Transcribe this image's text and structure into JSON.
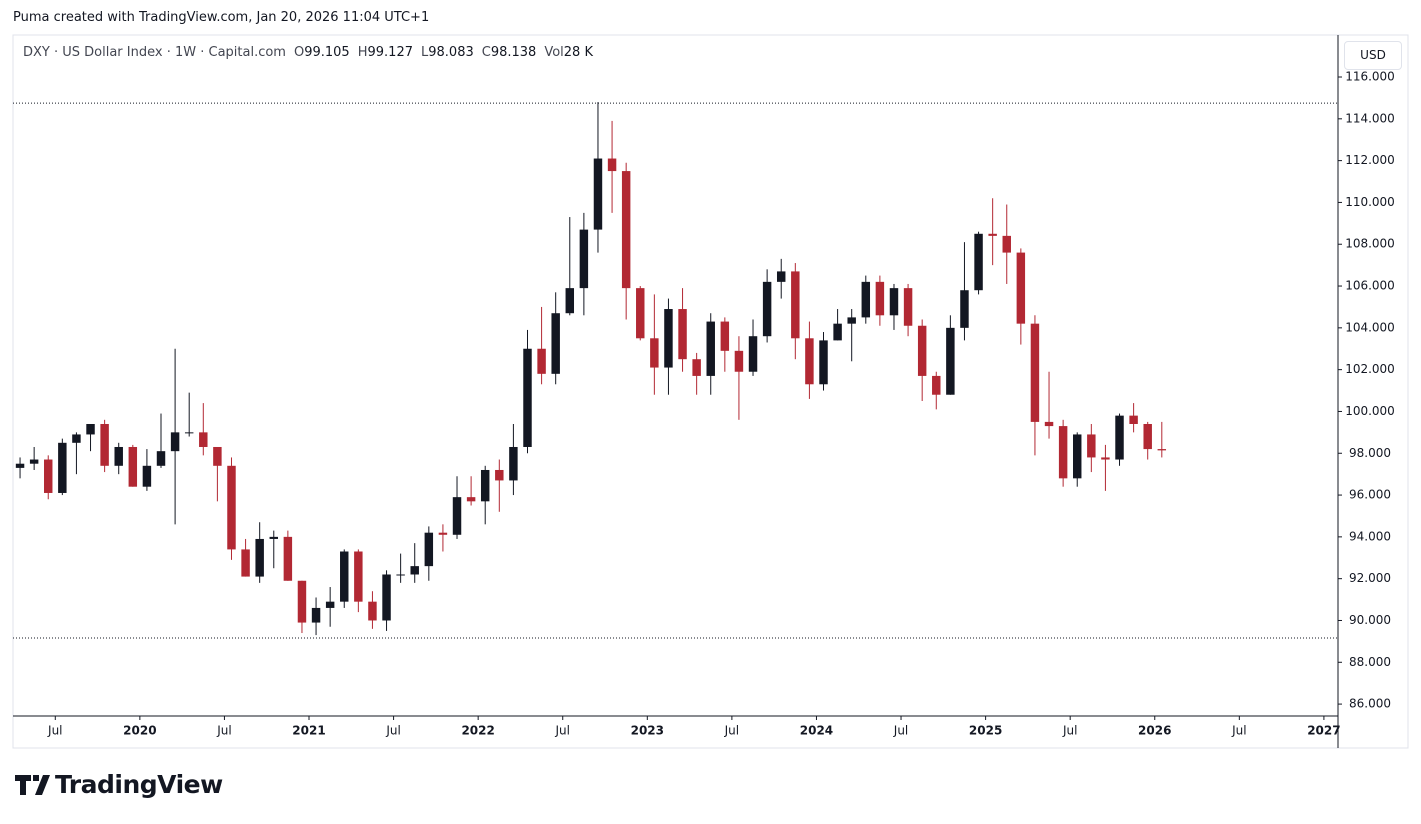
{
  "header": {
    "caption": "Puma created with TradingView.com, Jan 20, 2026 11:04 UTC+1",
    "symbol": "DXY · US Dollar Index · 1W · Capital.com",
    "ohlc": [
      {
        "label": "O",
        "value": 99.105
      },
      {
        "label": "H",
        "value": 99.127
      },
      {
        "label": "L",
        "value": 98.083
      },
      {
        "label": "C",
        "value": 98.138
      }
    ],
    "vol_label": "Vol",
    "vol": "28 K",
    "currency": "USD"
  },
  "logo": "TradingView",
  "chart_data": {
    "type": "candlestick",
    "up_color": "#131722",
    "down_color": "#b22833",
    "x": [
      "2019-04",
      "2019-05",
      "2019-06",
      "2019-07",
      "2019-08",
      "2019-09",
      "2019-10",
      "2019-11",
      "2019-12",
      "2020-01",
      "2020-02",
      "2020-03",
      "2020-04",
      "2020-05",
      "2020-06",
      "2020-07",
      "2020-08",
      "2020-09",
      "2020-10",
      "2020-11",
      "2020-12",
      "2021-01",
      "2021-02",
      "2021-03",
      "2021-04",
      "2021-05",
      "2021-06",
      "2021-07",
      "2021-08",
      "2021-09",
      "2021-10",
      "2021-11",
      "2021-12",
      "2022-01",
      "2022-02",
      "2022-03",
      "2022-04",
      "2022-05",
      "2022-06",
      "2022-07",
      "2022-08",
      "2022-09",
      "2022-10",
      "2022-11",
      "2022-12",
      "2023-01",
      "2023-02",
      "2023-03",
      "2023-04",
      "2023-05",
      "2023-06",
      "2023-07",
      "2023-08",
      "2023-09",
      "2023-10",
      "2023-11",
      "2023-12",
      "2024-01",
      "2024-02",
      "2024-03",
      "2024-04",
      "2024-05",
      "2024-06",
      "2024-07",
      "2024-08",
      "2024-09",
      "2024-10",
      "2024-11",
      "2024-12",
      "2025-01",
      "2025-02",
      "2025-03",
      "2025-04",
      "2025-05",
      "2025-06",
      "2025-07",
      "2025-08",
      "2025-09",
      "2025-10",
      "2025-11",
      "2025-12",
      "2026-01"
    ],
    "open": [
      97.3,
      97.5,
      97.7,
      96.1,
      98.5,
      98.9,
      99.4,
      97.4,
      98.3,
      96.4,
      97.4,
      98.1,
      99.0,
      99.0,
      98.3,
      97.4,
      93.4,
      92.1,
      93.9,
      94.0,
      91.9,
      89.9,
      90.6,
      90.9,
      93.3,
      90.9,
      90.0,
      92.2,
      92.2,
      92.6,
      94.2,
      94.1,
      95.9,
      95.7,
      97.2,
      96.7,
      98.3,
      103.0,
      101.8,
      104.7,
      105.9,
      108.7,
      112.1,
      111.5,
      105.9,
      103.5,
      102.1,
      104.9,
      102.5,
      101.7,
      104.3,
      102.9,
      101.9,
      103.6,
      106.2,
      106.7,
      103.5,
      101.3,
      103.4,
      104.2,
      104.5,
      106.2,
      104.6,
      105.9,
      104.1,
      101.7,
      100.8,
      104.0,
      105.8,
      108.5,
      108.4,
      107.6,
      104.2,
      99.5,
      99.3,
      96.8,
      98.9,
      97.8,
      97.7,
      99.8,
      99.4,
      98.2
    ],
    "high": [
      97.8,
      98.3,
      97.9,
      98.7,
      99.0,
      99.4,
      99.6,
      98.5,
      98.4,
      98.2,
      99.9,
      103.0,
      100.9,
      100.4,
      98.3,
      97.8,
      93.9,
      94.7,
      94.3,
      94.3,
      91.9,
      91.1,
      91.6,
      93.4,
      93.4,
      91.4,
      92.4,
      93.2,
      93.7,
      94.5,
      94.6,
      96.9,
      96.9,
      97.4,
      97.7,
      99.4,
      103.9,
      105.0,
      105.7,
      109.3,
      109.5,
      114.8,
      113.9,
      111.9,
      106.0,
      105.6,
      105.4,
      105.9,
      102.8,
      104.7,
      104.5,
      103.6,
      104.4,
      106.8,
      107.3,
      107.1,
      104.3,
      103.8,
      104.9,
      104.9,
      106.5,
      106.5,
      106.1,
      106.1,
      104.4,
      101.9,
      104.6,
      108.1,
      108.6,
      110.2,
      109.9,
      107.8,
      104.6,
      101.9,
      99.6,
      99.0,
      99.4,
      98.4,
      99.9,
      100.4,
      99.5,
      99.5
    ],
    "low": [
      96.8,
      97.2,
      95.8,
      96.0,
      97.0,
      98.1,
      97.1,
      97.0,
      96.4,
      96.2,
      97.3,
      94.6,
      98.8,
      97.9,
      95.7,
      92.9,
      92.1,
      91.8,
      92.5,
      91.9,
      89.4,
      89.3,
      89.7,
      90.6,
      90.4,
      89.6,
      89.5,
      91.8,
      91.8,
      91.9,
      93.3,
      93.9,
      95.5,
      94.6,
      95.2,
      96.0,
      98.0,
      101.3,
      101.3,
      104.6,
      104.6,
      107.6,
      109.5,
      104.4,
      103.4,
      100.8,
      100.8,
      101.9,
      100.8,
      100.8,
      101.9,
      99.6,
      101.7,
      103.3,
      105.4,
      102.5,
      100.6,
      101.0,
      103.4,
      102.4,
      104.2,
      104.1,
      103.9,
      103.6,
      100.5,
      100.1,
      100.8,
      103.4,
      105.6,
      107.0,
      106.1,
      103.2,
      97.9,
      98.7,
      96.4,
      96.4,
      97.1,
      96.2,
      97.4,
      99.0,
      97.7,
      97.8
    ],
    "close": [
      97.5,
      97.7,
      96.1,
      98.5,
      98.9,
      99.4,
      97.4,
      98.3,
      96.4,
      97.4,
      98.1,
      99.0,
      99.0,
      98.3,
      97.4,
      93.4,
      92.1,
      93.9,
      94.0,
      91.9,
      89.9,
      90.6,
      90.9,
      93.3,
      90.9,
      90.0,
      92.2,
      92.2,
      92.6,
      94.2,
      94.1,
      95.9,
      95.7,
      97.2,
      96.7,
      98.3,
      103.0,
      101.8,
      104.7,
      105.9,
      108.7,
      112.1,
      111.5,
      105.9,
      103.5,
      102.1,
      104.9,
      102.5,
      101.7,
      104.3,
      102.9,
      101.9,
      103.6,
      106.2,
      106.7,
      103.5,
      101.3,
      103.4,
      104.2,
      104.5,
      106.2,
      104.6,
      105.9,
      104.1,
      101.7,
      100.8,
      104.0,
      105.8,
      108.5,
      108.4,
      107.6,
      104.2,
      99.5,
      99.3,
      96.8,
      98.9,
      97.8,
      97.7,
      99.8,
      99.4,
      98.2,
      98.138
    ],
    "xlim": [
      "2019-04",
      "2027-02"
    ],
    "xticks": [
      {
        "value": "2019-07",
        "label": "Jul"
      },
      {
        "value": "2020-01",
        "label": "2020"
      },
      {
        "value": "2020-07",
        "label": "Jul"
      },
      {
        "value": "2021-01",
        "label": "2021"
      },
      {
        "value": "2021-07",
        "label": "Jul"
      },
      {
        "value": "2022-01",
        "label": "2022"
      },
      {
        "value": "2022-07",
        "label": "Jul"
      },
      {
        "value": "2023-01",
        "label": "2023"
      },
      {
        "value": "2023-07",
        "label": "Jul"
      },
      {
        "value": "2024-01",
        "label": "2024"
      },
      {
        "value": "2024-07",
        "label": "Jul"
      },
      {
        "value": "2025-01",
        "label": "2025"
      },
      {
        "value": "2025-07",
        "label": "Jul"
      },
      {
        "value": "2026-01",
        "label": "2026"
      },
      {
        "value": "2026-07",
        "label": "Jul"
      },
      {
        "value": "2027-01",
        "label": "2027"
      }
    ],
    "ylim": [
      85.43,
      118.01
    ],
    "yticks": [
      {
        "value": 86,
        "label": "86.000"
      },
      {
        "value": 88,
        "label": "88.000"
      },
      {
        "value": 90,
        "label": "90.000"
      },
      {
        "value": 92,
        "label": "92.000"
      },
      {
        "value": 94,
        "label": "94.000"
      },
      {
        "value": 96,
        "label": "96.000"
      },
      {
        "value": 98,
        "label": "98.000"
      },
      {
        "value": 100,
        "label": "100.000"
      },
      {
        "value": 102,
        "label": "102.000"
      },
      {
        "value": 104,
        "label": "104.000"
      },
      {
        "value": 106,
        "label": "106.000"
      },
      {
        "value": 108,
        "label": "108.000"
      },
      {
        "value": 110,
        "label": "110.000"
      },
      {
        "value": 112,
        "label": "112.000"
      },
      {
        "value": 114,
        "label": "114.000"
      },
      {
        "value": 116,
        "label": "116.000"
      }
    ],
    "hlines": [
      114.75,
      89.16
    ]
  }
}
